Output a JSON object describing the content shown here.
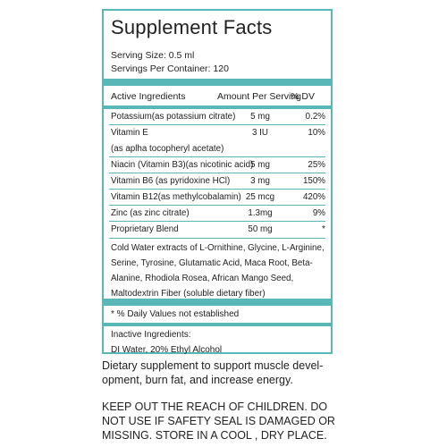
{
  "panel": {
    "title": "Supplement Facts",
    "serving_size": "Serving Size: 0.5 ml",
    "servings_per_container": "Servings Per Container: 120",
    "header": {
      "ingredients": "Active Ingredients",
      "amount": "Amount Per Serving",
      "dv": "% DV"
    },
    "rows": [
      {
        "name": "Potassium(as potassium citrate)",
        "amount": "5 mg",
        "dv": "0.2%"
      },
      {
        "name": "Vitamin E",
        "amount": "3 IU",
        "dv": "10%"
      },
      {
        "name": "(as aplha tocopheryl acetate)",
        "amount": "",
        "dv": ""
      },
      {
        "name": "Niacin (Vitamin B3)(as nicotinic acid)",
        "amount": "5 mg",
        "dv": "25%"
      },
      {
        "name": "Vitamin B6 (as pyridoxine HCl)",
        "amount": "3 mg",
        "dv": "150%"
      },
      {
        "name": "Vitamin B12(as methylcobalamin)",
        "amount": "25 mcg",
        "dv": "420%"
      },
      {
        "name": "Zinc (as zinc citrate)",
        "amount": "1.3mg",
        "dv": "9%"
      },
      {
        "name": "Proprietary Blend",
        "amount": "50 mg",
        "dv": "*"
      }
    ],
    "blend_description": "Cold Water extracts of L-Ornithine, Glycine, L-Arginine, Serine, Tyrosine, Glutamatic Acid, Maca Root, Beta-Alanine, Rhodiola Rosea, African Mango Seed, Maltodextrin Fiber (soluble dietary fiber)",
    "dv_note": "* % Daily Values not established",
    "inactive_label": "Inactive Ingredients:",
    "inactive_value": "DI Water, 20% Ethyl Alcohol"
  },
  "description": "Dietary supplement to support muscle devel- opment, burn fat, and increase energy.",
  "warning": "KEEP OUT THE REACH OF CHILDREN. DO NOT USE IF SAFETY SEAL IS DAMAGED OR MISSING. STORE IN A COOL , DRY PLACE.",
  "colors": {
    "accent": "#5ab7b7"
  }
}
